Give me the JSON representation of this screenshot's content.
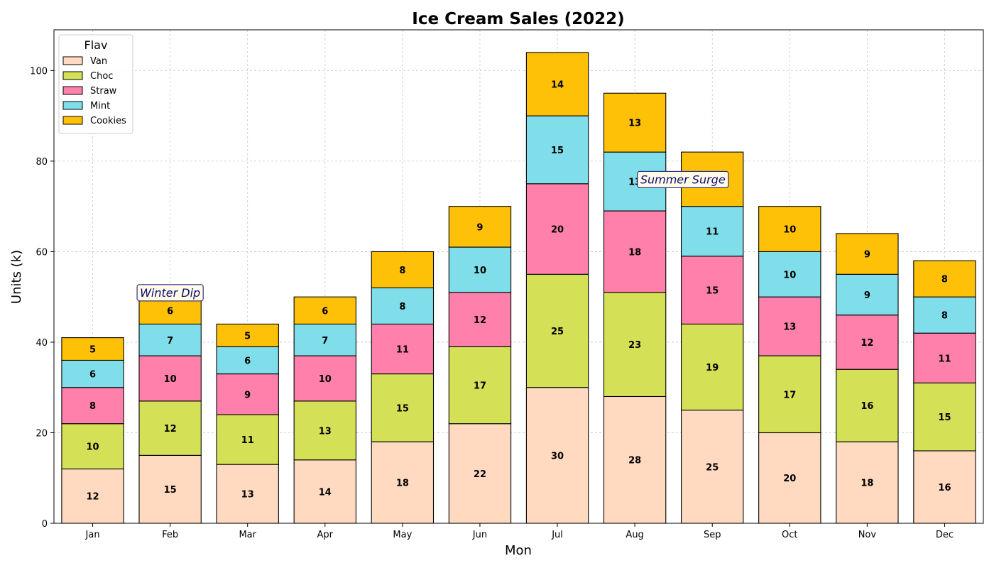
{
  "chart_data": {
    "type": "bar",
    "stacked": true,
    "title": "Ice Cream Sales (2022)",
    "xlabel": "Mon",
    "ylabel": "Units (k)",
    "ylim": [
      0,
      109
    ],
    "yticks": [
      0,
      20,
      40,
      60,
      80,
      100
    ],
    "grid": true,
    "legend": {
      "title": "Flav",
      "placement": "top-left"
    },
    "categories": [
      "Jan",
      "Feb",
      "Mar",
      "Apr",
      "May",
      "Jun",
      "Jul",
      "Aug",
      "Sep",
      "Oct",
      "Nov",
      "Dec"
    ],
    "series": [
      {
        "name": "Van",
        "color": "#FFDAC1",
        "values": [
          12,
          15,
          13,
          14,
          18,
          22,
          30,
          28,
          25,
          20,
          18,
          16
        ]
      },
      {
        "name": "Choc",
        "color": "#D4E157",
        "values": [
          10,
          12,
          11,
          13,
          15,
          17,
          25,
          23,
          19,
          17,
          16,
          15
        ]
      },
      {
        "name": "Straw",
        "color": "#FF80AB",
        "values": [
          8,
          10,
          9,
          10,
          11,
          12,
          20,
          18,
          15,
          13,
          12,
          11
        ]
      },
      {
        "name": "Mint",
        "color": "#80DEEA",
        "values": [
          6,
          7,
          6,
          7,
          8,
          10,
          15,
          13,
          11,
          10,
          9,
          8
        ]
      },
      {
        "name": "Cookies",
        "color": "#FFC107",
        "values": [
          5,
          6,
          5,
          6,
          8,
          9,
          14,
          13,
          12,
          10,
          9,
          8
        ]
      }
    ],
    "annotations": [
      {
        "text": "Winter Dip",
        "x": "Feb",
        "y": 51
      },
      {
        "text": "Summer Surge",
        "x": "Aug",
        "y": 76,
        "x_offset": 0.62
      }
    ]
  }
}
